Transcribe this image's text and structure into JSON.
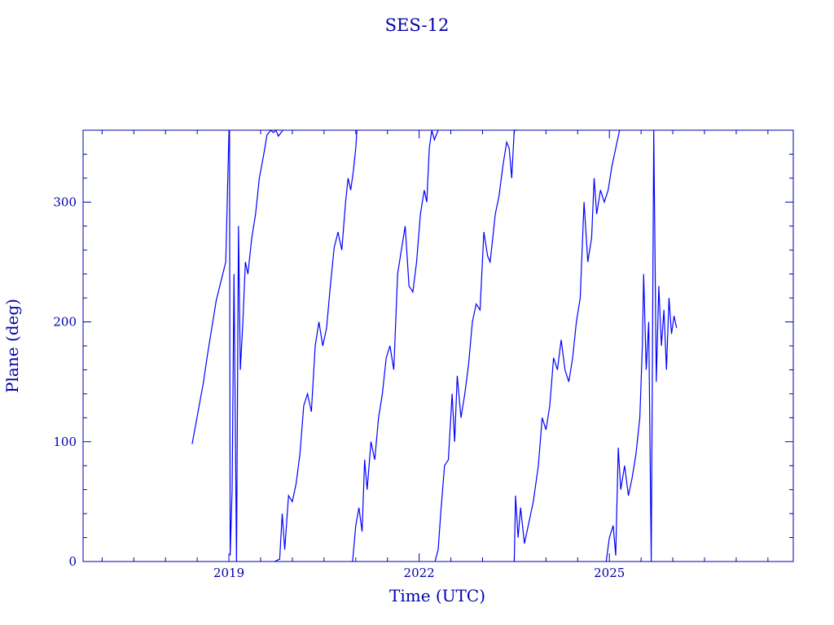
{
  "chart_data": {
    "type": "line",
    "title": "SES-12",
    "xlabel": "Time (UTC)",
    "ylabel": "Plane (deg)",
    "xlim": [
      2016.7,
      2027.9
    ],
    "ylim": [
      0,
      360
    ],
    "x_ticks": [
      2019,
      2022,
      2025
    ],
    "y_ticks": [
      0,
      100,
      200,
      300
    ],
    "grid": false,
    "color": "#0000ff",
    "axis_color": "#0000aa",
    "series": [
      {
        "x": [
          2018.42,
          2018.6,
          2018.66,
          2018.8,
          2018.95,
          2019.0,
          2019.01,
          2019.02,
          2019.05,
          2019.08,
          2019.12,
          2019.15,
          2019.18,
          2019.22,
          2019.26,
          2019.3,
          2019.36,
          2019.42,
          2019.48,
          2019.55,
          2019.6,
          2019.66,
          2019.7,
          2019.74,
          2019.78,
          2019.85
        ],
        "y": [
          98,
          150,
          172,
          218,
          250,
          358,
          360,
          5,
          60,
          240,
          0,
          280,
          160,
          200,
          250,
          240,
          270,
          290,
          320,
          340,
          356,
          360,
          358,
          360,
          355,
          362
        ]
      },
      {
        "x": [
          2019.72,
          2019.8,
          2019.84,
          2019.88,
          2019.94,
          2020.0,
          2020.06,
          2020.12,
          2020.18,
          2020.24,
          2020.3,
          2020.36,
          2020.42,
          2020.48,
          2020.54,
          2020.6,
          2020.66,
          2020.72,
          2020.78,
          2020.84,
          2020.88,
          2020.92,
          2020.96,
          2021.0,
          2021.02
        ],
        "y": [
          0,
          2,
          40,
          10,
          55,
          50,
          65,
          90,
          130,
          140,
          125,
          180,
          200,
          180,
          195,
          230,
          262,
          275,
          260,
          300,
          320,
          310,
          325,
          345,
          362
        ]
      },
      {
        "x": [
          2020.95,
          2021.0,
          2021.05,
          2021.1,
          2021.14,
          2021.18,
          2021.24,
          2021.3,
          2021.36,
          2021.42,
          2021.48,
          2021.54,
          2021.6,
          2021.66,
          2021.72,
          2021.78,
          2021.84,
          2021.9,
          2021.96,
          2022.02,
          2022.08,
          2022.12,
          2022.16,
          2022.2,
          2022.24,
          2022.3
        ],
        "y": [
          0,
          30,
          45,
          25,
          85,
          60,
          100,
          85,
          120,
          140,
          170,
          180,
          160,
          240,
          260,
          280,
          230,
          225,
          250,
          290,
          310,
          300,
          345,
          362,
          352,
          360
        ]
      },
      {
        "x": [
          2022.25,
          2022.3,
          2022.34,
          2022.4,
          2022.46,
          2022.52,
          2022.56,
          2022.6,
          2022.66,
          2022.72,
          2022.78,
          2022.84,
          2022.9,
          2022.96,
          2023.02,
          2023.08,
          2023.12,
          2023.16,
          2023.2,
          2023.26,
          2023.32,
          2023.38,
          2023.42,
          2023.46,
          2023.5,
          2023.54
        ],
        "y": [
          0,
          10,
          40,
          80,
          85,
          140,
          100,
          155,
          120,
          140,
          165,
          200,
          215,
          210,
          275,
          255,
          250,
          270,
          290,
          305,
          330,
          350,
          345,
          320,
          362,
          360
        ]
      },
      {
        "x": [
          2023.5,
          2023.52,
          2023.56,
          2023.6,
          2023.66,
          2023.72,
          2023.8,
          2023.88,
          2023.94,
          2024.0,
          2024.06,
          2024.12,
          2024.18,
          2024.24,
          2024.3,
          2024.36,
          2024.42,
          2024.48,
          2024.54,
          2024.6,
          2024.66,
          2024.72,
          2024.76,
          2024.8,
          2024.86,
          2024.92,
          2024.98,
          2025.04,
          2025.1,
          2025.16
        ],
        "y": [
          0,
          55,
          20,
          45,
          15,
          30,
          50,
          80,
          120,
          110,
          130,
          170,
          160,
          185,
          160,
          150,
          170,
          200,
          220,
          300,
          250,
          270,
          320,
          290,
          310,
          300,
          310,
          330,
          345,
          362
        ]
      },
      {
        "x": [
          2024.95,
          2025.0,
          2025.06,
          2025.1,
          2025.14,
          2025.18,
          2025.24,
          2025.3,
          2025.36,
          2025.42,
          2025.48,
          2025.52,
          2025.54,
          2025.58,
          2025.62,
          2025.66,
          2025.7,
          2025.74,
          2025.78,
          2025.82,
          2025.86,
          2025.9,
          2025.94,
          2025.98,
          2026.02,
          2026.06
        ],
        "y": [
          0,
          20,
          30,
          5,
          95,
          60,
          80,
          55,
          70,
          90,
          120,
          180,
          240,
          160,
          200,
          0,
          360,
          150,
          230,
          180,
          210,
          160,
          220,
          190,
          205,
          195
        ]
      }
    ]
  }
}
